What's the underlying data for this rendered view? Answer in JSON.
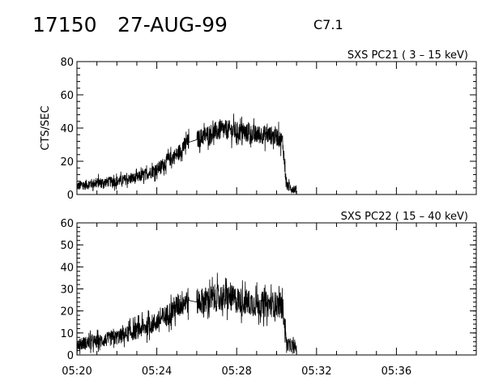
{
  "header": {
    "event_id": "17150",
    "date": "27-AUG-99",
    "flare_class": "C7.1"
  },
  "chart_data": [
    {
      "type": "line",
      "title": "SXS PC21  ( 3 – 15 keV)",
      "ylabel": "CTS/SEC",
      "xlabel": "",
      "ylim": [
        0,
        80
      ],
      "yticks": [
        0,
        20,
        40,
        60,
        80
      ],
      "y_tick_labels": [
        "0",
        "20",
        "40",
        "60",
        "80"
      ],
      "xlim": [
        "05:20",
        "05:40"
      ],
      "series": [
        {
          "x": [
            "05:20",
            "05:21",
            "05:22",
            "05:23",
            "05:24",
            "05:24.5",
            "05:25",
            "05:25.5",
            "05:26",
            "05:26.5",
            "05:27",
            "05:27.5",
            "05:28",
            "05:28.5",
            "05:29",
            "05:29.5",
            "05:30",
            "05:30.3",
            "05:30.5",
            "05:31"
          ],
          "values": [
            5,
            7,
            8,
            10,
            15,
            20,
            24,
            31,
            33,
            36,
            38,
            39,
            38,
            37,
            36,
            36,
            35,
            32,
            5,
            3
          ]
        }
      ]
    },
    {
      "type": "line",
      "title": "SXS PC22  ( 15 – 40 keV)",
      "ylabel": "",
      "xlabel": "",
      "ylim": [
        0,
        60
      ],
      "yticks": [
        0,
        10,
        20,
        30,
        40,
        50,
        60
      ],
      "y_tick_labels": [
        "0",
        "10",
        "20",
        "30",
        "40",
        "50",
        "60"
      ],
      "xlim": [
        "05:20",
        "05:40"
      ],
      "x_tick_labels": [
        "05:20",
        "05:24",
        "05:28",
        "05:32",
        "05:36"
      ],
      "series": [
        {
          "x": [
            "05:20",
            "05:21",
            "05:22",
            "05:23",
            "05:24",
            "05:24.5",
            "05:25",
            "05:25.5",
            "05:26",
            "05:26.5",
            "05:27",
            "05:27.5",
            "05:28",
            "05:28.5",
            "05:29",
            "05:29.5",
            "05:30",
            "05:30.3",
            "05:30.5",
            "05:31"
          ],
          "values": [
            5,
            6,
            8,
            11,
            15,
            18,
            22,
            25,
            24,
            25,
            26,
            26,
            25,
            24,
            23,
            23,
            23,
            22,
            5,
            3
          ]
        }
      ]
    }
  ]
}
